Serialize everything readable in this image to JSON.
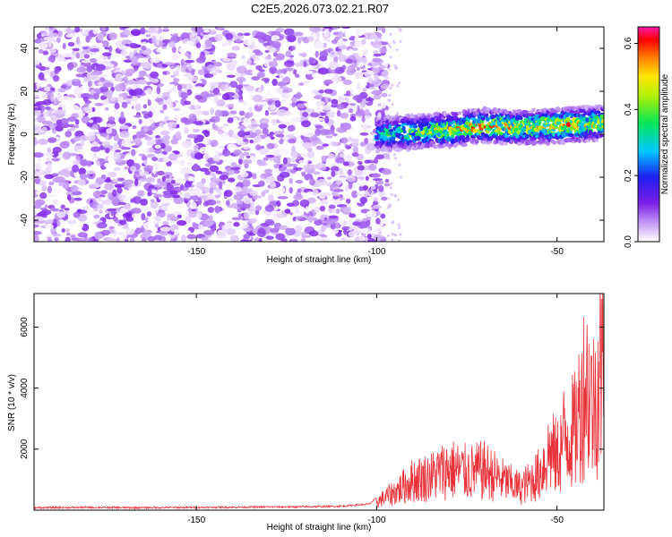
{
  "figure": {
    "title": "C2E5.2026.073.02.21.R07"
  },
  "chart_data": [
    {
      "type": "heatmap",
      "xlabel": "Height of straight line (km)",
      "ylabel": "Frequency (Hz)",
      "xlim": [
        -195,
        -37
      ],
      "ylim": [
        -50,
        50
      ],
      "xticks": [
        -150,
        -100,
        -50
      ],
      "yticks": [
        -40,
        -20,
        0,
        20,
        40
      ],
      "grid": false,
      "colorbar": {
        "label": "Normalized spectral amplitude",
        "range": [
          0,
          0.65
        ],
        "ticks": [
          0.0,
          0.2,
          0.4,
          0.6
        ],
        "colormap": "rainbow (white → violet → blue → cyan → green → yellow → orange → red → magenta)"
      },
      "signal_band": {
        "description": "narrow band near 0 Hz appearing from about -100 km, drifting from about 0 Hz to about +5 Hz",
        "x": [
          -100,
          -90,
          -80,
          -70,
          -60,
          -50,
          -40
        ],
        "center_hz": [
          0,
          1,
          2,
          4,
          3,
          4,
          5
        ],
        "peak_amplitude": [
          0.35,
          0.45,
          0.55,
          0.6,
          0.55,
          0.6,
          0.55
        ]
      },
      "noise_region": {
        "x_range": [
          -195,
          -97
        ],
        "amplitude_range": [
          0.0,
          0.12
        ]
      }
    },
    {
      "type": "line",
      "xlabel": "Height of straight line (km)",
      "ylabel": "SNR (10 * v/v)",
      "xlim": [
        -195,
        -37
      ],
      "ylim": [
        0,
        7100
      ],
      "xticks": [
        -150,
        -100,
        -50
      ],
      "yticks": [
        2000,
        4000,
        6000
      ],
      "color": "#e8333a",
      "grid": false,
      "series": [
        {
          "x": [
            -195,
            -180,
            -165,
            -150,
            -135,
            -120,
            -110,
            -102,
            -98,
            -95,
            -90,
            -85,
            -80,
            -75,
            -70,
            -65,
            -60,
            -55,
            -52,
            -50,
            -48,
            -45,
            -42,
            -40,
            -38
          ],
          "values": [
            80,
            90,
            80,
            90,
            100,
            110,
            130,
            200,
            600,
            900,
            1500,
            1700,
            2100,
            1900,
            2000,
            1500,
            1100,
            1800,
            3000,
            2600,
            3700,
            4000,
            6600,
            5200,
            7000
          ]
        }
      ]
    }
  ]
}
